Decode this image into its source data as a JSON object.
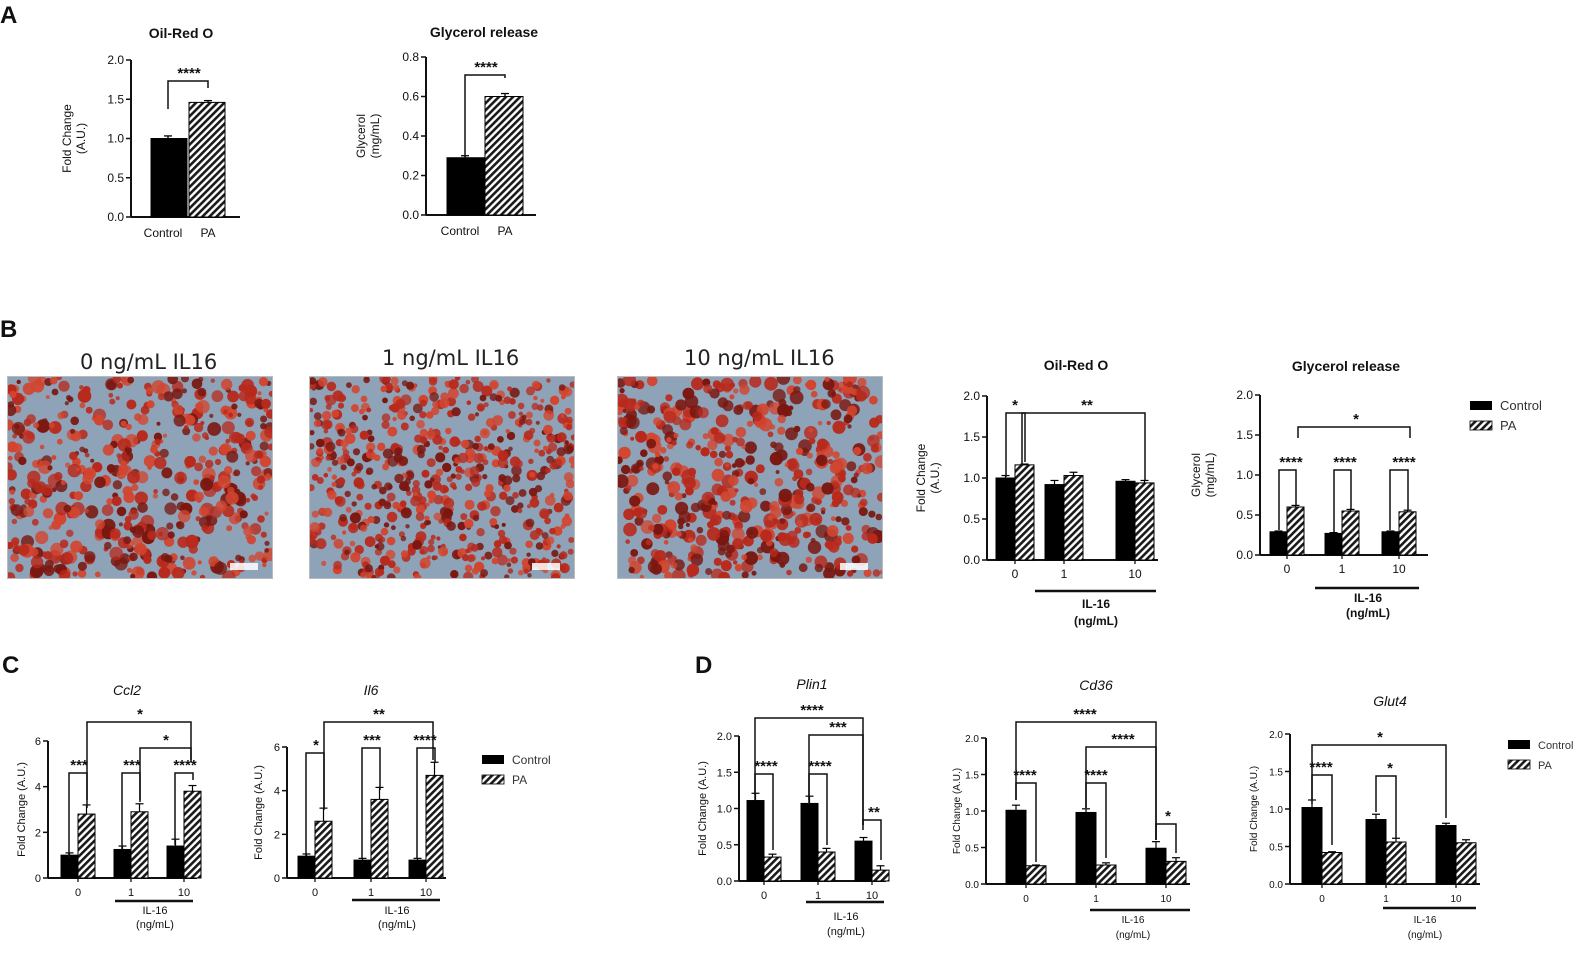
{
  "panels": {
    "A": "A",
    "B": "B",
    "C": "C",
    "D": "D"
  },
  "legend": {
    "control": "Control",
    "pa": "PA"
  },
  "micrographs": [
    {
      "title": "0  ng/mL IL16"
    },
    {
      "title": "1 ng/mL IL16"
    },
    {
      "title": "10 ng/mL IL16"
    }
  ],
  "colors": {
    "control": "#000000",
    "pa_stripe": "#1a1a1a",
    "pa_bg": "#ffffff",
    "cells": "#b8291c",
    "background_tissue": "#8ea3b8"
  },
  "chart_data": [
    {
      "id": "a1",
      "type": "bar",
      "title": "Oil-Red O",
      "title_italic": false,
      "ylabel": [
        "Fold Change",
        "(A.U.)"
      ],
      "ylim": [
        0,
        2.0
      ],
      "yticks": [
        "0.0",
        "0.5",
        "1.0",
        "1.5",
        "2.0"
      ],
      "categories": [
        "Control",
        "PA"
      ],
      "series": [
        {
          "values": [
            1.0,
            1.46
          ],
          "errors": [
            0.02,
            0.01
          ]
        }
      ],
      "annotations": [
        {
          "text": "****"
        }
      ],
      "group_label": ""
    },
    {
      "id": "a2",
      "type": "bar",
      "title": "Glycerol release",
      "title_italic": false,
      "ylabel": [
        "Glycerol",
        "(mg/mL)"
      ],
      "ylim": [
        0,
        0.8
      ],
      "yticks": [
        "0.0",
        "0.2",
        "0.4",
        "0.6",
        "0.8"
      ],
      "categories": [
        "Control",
        "PA"
      ],
      "series": [
        {
          "values": [
            0.29,
            0.6
          ],
          "errors": [
            0.005,
            0.01
          ]
        }
      ],
      "annotations": [
        {
          "text": "****"
        }
      ],
      "group_label": ""
    },
    {
      "id": "b1",
      "type": "bar",
      "title": "Oil-Red O",
      "title_italic": false,
      "ylabel": [
        "Fold Change",
        "(A.U.)"
      ],
      "ylim": [
        0,
        2.0
      ],
      "yticks": [
        "0.0",
        "0.5",
        "1.0",
        "1.5",
        "2.0"
      ],
      "categories": [
        "0",
        "1",
        "10"
      ],
      "series": [
        {
          "name": "Control",
          "values": [
            1.0,
            0.92,
            0.96
          ],
          "errors": [
            0.03,
            0.05,
            0.02
          ]
        },
        {
          "name": "PA",
          "values": [
            1.16,
            1.03,
            0.94
          ],
          "errors": [
            0.01,
            0.04,
            0.03
          ]
        }
      ],
      "annotations": [
        {
          "text": "*"
        },
        {
          "text": "**"
        }
      ],
      "group_label": [
        "IL-16",
        "(ng/mL)"
      ]
    },
    {
      "id": "b2",
      "type": "bar",
      "title": "Glycerol release",
      "title_italic": false,
      "ylabel": [
        "Glycerol",
        "(mg/mL)"
      ],
      "ylim": [
        0,
        2.0
      ],
      "yticks": [
        "0.0",
        "0.5",
        "1.0",
        "1.5",
        "2.0"
      ],
      "categories": [
        "0",
        "1",
        "10"
      ],
      "series": [
        {
          "name": "Control",
          "values": [
            0.29,
            0.27,
            0.29
          ],
          "errors": [
            0.01,
            0.01,
            0.01
          ]
        },
        {
          "name": "PA",
          "values": [
            0.6,
            0.55,
            0.54
          ],
          "errors": [
            0.02,
            0.02,
            0.02
          ]
        }
      ],
      "annotations": [
        {
          "text": "****"
        },
        {
          "text": "****"
        },
        {
          "text": "****"
        },
        {
          "text": "*"
        }
      ],
      "group_label": [
        "IL-16",
        "(ng/mL)"
      ]
    },
    {
      "id": "c1",
      "type": "bar",
      "title": "Ccl2",
      "title_italic": true,
      "ylabel": [
        "Fold Change (A.U.)"
      ],
      "ylim": [
        0,
        6
      ],
      "yticks": [
        "0",
        "2",
        "4",
        "6"
      ],
      "categories": [
        "0",
        "1",
        "10"
      ],
      "series": [
        {
          "name": "Control",
          "values": [
            1.0,
            1.25,
            1.4
          ],
          "errors": [
            0.1,
            0.15,
            0.3
          ]
        },
        {
          "name": "PA",
          "values": [
            2.8,
            2.9,
            3.8
          ],
          "errors": [
            0.4,
            0.35,
            0.25
          ]
        }
      ],
      "annotations": [
        {
          "text": "***"
        },
        {
          "text": "***"
        },
        {
          "text": "****"
        },
        {
          "text": "*"
        },
        {
          "text": "*"
        }
      ],
      "group_label": [
        "IL-16",
        "(ng/mL)"
      ]
    },
    {
      "id": "c2",
      "type": "bar",
      "title": "Il6",
      "title_italic": true,
      "ylabel": [
        "Fold Change (A.U.)"
      ],
      "ylim": [
        0,
        6
      ],
      "yticks": [
        "0",
        "2",
        "4",
        "6"
      ],
      "categories": [
        "0",
        "1",
        "10"
      ],
      "series": [
        {
          "name": "Control",
          "values": [
            1.0,
            0.82,
            0.82
          ],
          "errors": [
            0.1,
            0.08,
            0.08
          ]
        },
        {
          "name": "PA",
          "values": [
            2.6,
            3.6,
            4.7
          ],
          "errors": [
            0.6,
            0.55,
            0.6
          ]
        }
      ],
      "annotations": [
        {
          "text": "*"
        },
        {
          "text": "***"
        },
        {
          "text": "****"
        },
        {
          "text": "**"
        }
      ],
      "group_label": [
        "IL-16",
        "(ng/mL)"
      ]
    },
    {
      "id": "d1",
      "type": "bar",
      "title": "Plin1",
      "title_italic": true,
      "ylabel": [
        "Fold Change (A.U.)"
      ],
      "ylim": [
        0,
        2.0
      ],
      "yticks": [
        "0.0",
        "0.5",
        "1.0",
        "1.5",
        "2.0"
      ],
      "categories": [
        "0",
        "1",
        "10"
      ],
      "series": [
        {
          "name": "Control",
          "values": [
            1.11,
            1.07,
            0.55
          ],
          "errors": [
            0.1,
            0.1,
            0.05
          ]
        },
        {
          "name": "PA",
          "values": [
            0.33,
            0.4,
            0.15
          ],
          "errors": [
            0.04,
            0.05,
            0.06
          ]
        }
      ],
      "annotations": [
        {
          "text": "****"
        },
        {
          "text": "****"
        },
        {
          "text": "**"
        },
        {
          "text": "****"
        },
        {
          "text": "***"
        }
      ],
      "group_label": [
        "IL-16",
        "(ng/mL)"
      ]
    },
    {
      "id": "d2",
      "type": "bar",
      "title": "Cd36",
      "title_italic": true,
      "ylabel": [
        "Fold Change (A.U.)"
      ],
      "ylim": [
        0,
        2.0
      ],
      "yticks": [
        "0.0",
        "0.5",
        "1.0",
        "1.5",
        "2.0"
      ],
      "categories": [
        "0",
        "1",
        "10"
      ],
      "series": [
        {
          "name": "Control",
          "values": [
            1.01,
            0.98,
            0.49
          ],
          "errors": [
            0.07,
            0.05,
            0.09
          ]
        },
        {
          "name": "PA",
          "values": [
            0.25,
            0.26,
            0.31
          ],
          "errors": [
            0.01,
            0.03,
            0.05
          ]
        }
      ],
      "annotations": [
        {
          "text": "****"
        },
        {
          "text": "****"
        },
        {
          "text": "*"
        },
        {
          "text": "****"
        },
        {
          "text": "****"
        }
      ],
      "group_label": [
        "IL-16",
        "(ng/mL)"
      ]
    },
    {
      "id": "d3",
      "type": "bar",
      "title": "Glut4",
      "title_italic": true,
      "ylabel": [
        "Fold Change (A.U.)"
      ],
      "ylim": [
        0,
        2.0
      ],
      "yticks": [
        "0.0",
        "0.5",
        "1.0",
        "1.5",
        "2.0"
      ],
      "categories": [
        "0",
        "1",
        "10"
      ],
      "series": [
        {
          "name": "Control",
          "values": [
            1.02,
            0.86,
            0.78
          ],
          "errors": [
            0.1,
            0.07,
            0.03
          ]
        },
        {
          "name": "PA",
          "values": [
            0.42,
            0.56,
            0.55
          ],
          "errors": [
            0.01,
            0.05,
            0.04
          ]
        }
      ],
      "annotations": [
        {
          "text": "****"
        },
        {
          "text": "*"
        },
        {
          "text": "*"
        }
      ],
      "group_label": [
        "IL-16",
        "(ng/mL)"
      ]
    }
  ]
}
